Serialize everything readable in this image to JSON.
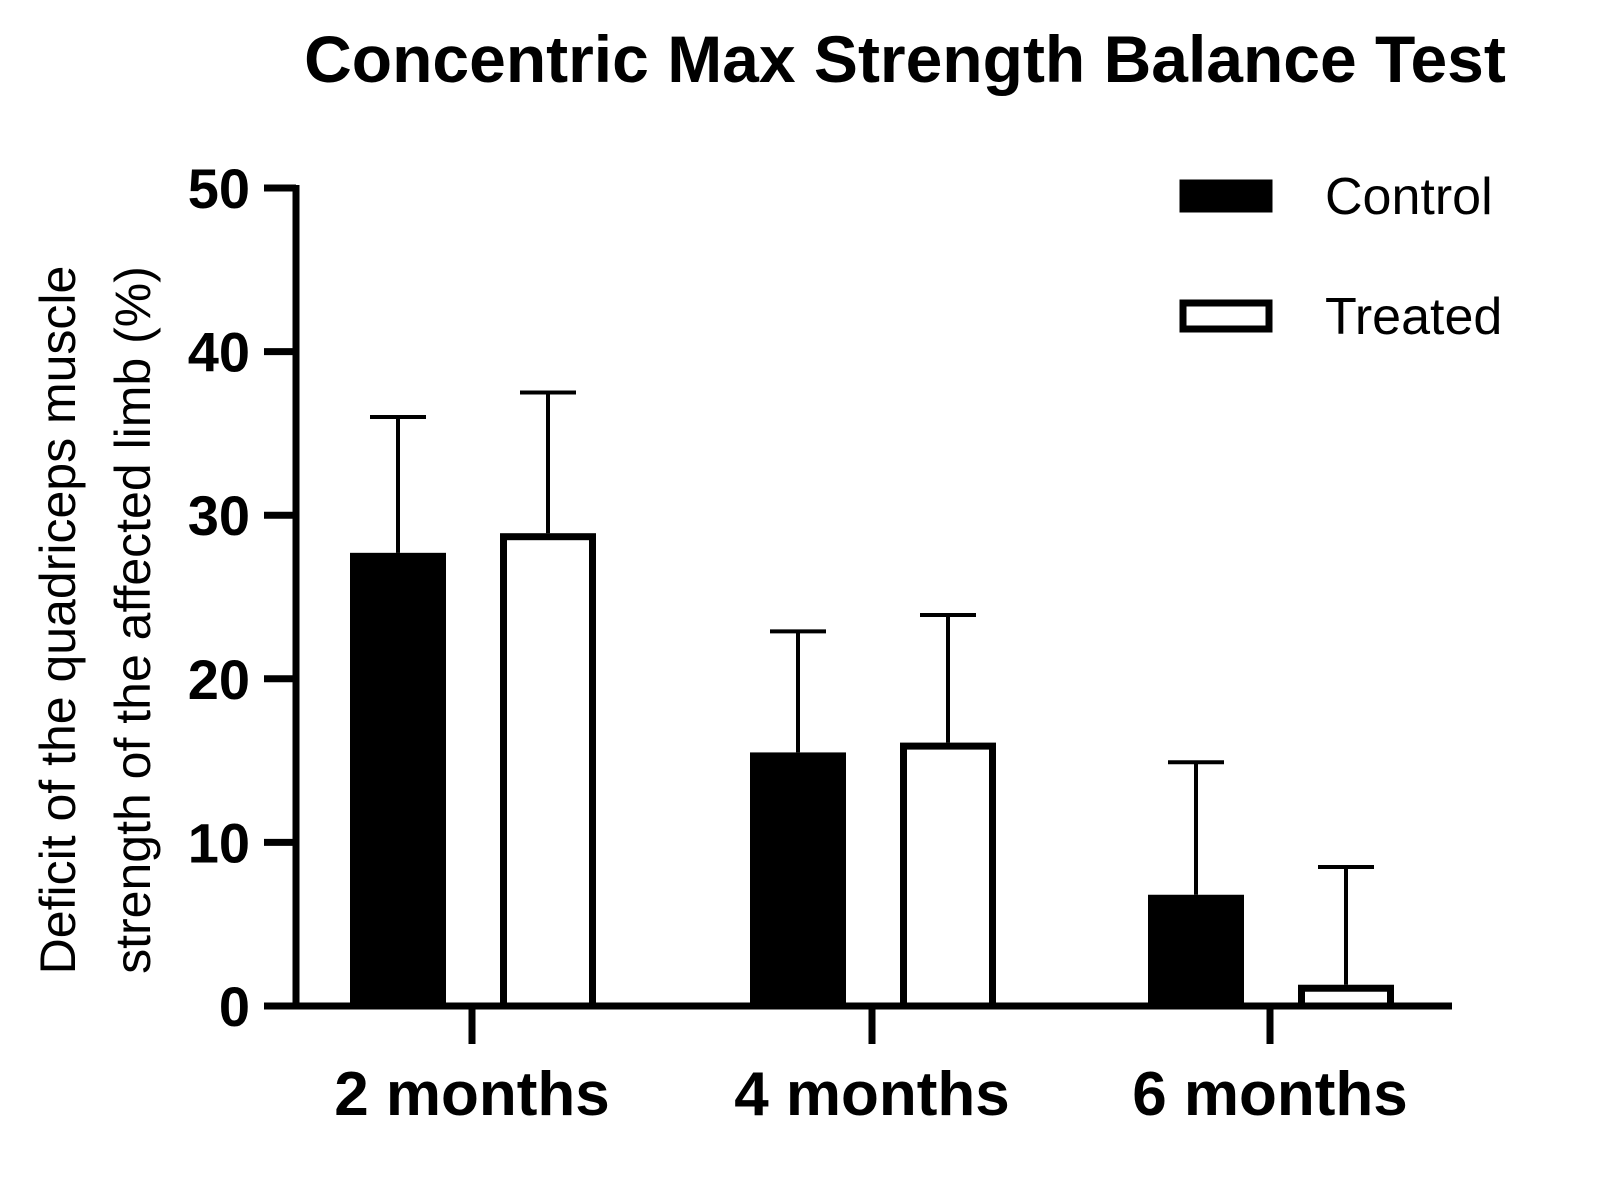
{
  "chart_data": {
    "type": "bar",
    "title": "Concentric Max Strength Balance Test",
    "ylabel_lines": [
      "Deficit of the quadriceps muscle",
      "strength of the affected limb (%)"
    ],
    "xlabel": "",
    "ylim": [
      0,
      50
    ],
    "yticks": [
      0,
      10,
      20,
      30,
      40,
      50
    ],
    "categories": [
      "2 months",
      "4 months",
      "6 months"
    ],
    "series": [
      {
        "name": "Control",
        "fill": "#000000",
        "values": [
          27.7,
          15.5,
          6.8
        ],
        "error_upper": [
          36.0,
          22.9,
          14.9
        ]
      },
      {
        "name": "Treated",
        "fill": "#ffffff",
        "values": [
          28.9,
          16.1,
          1.3
        ],
        "error_upper": [
          37.5,
          23.9,
          8.5
        ]
      }
    ],
    "legend_position": "top-right",
    "grid": false
  }
}
